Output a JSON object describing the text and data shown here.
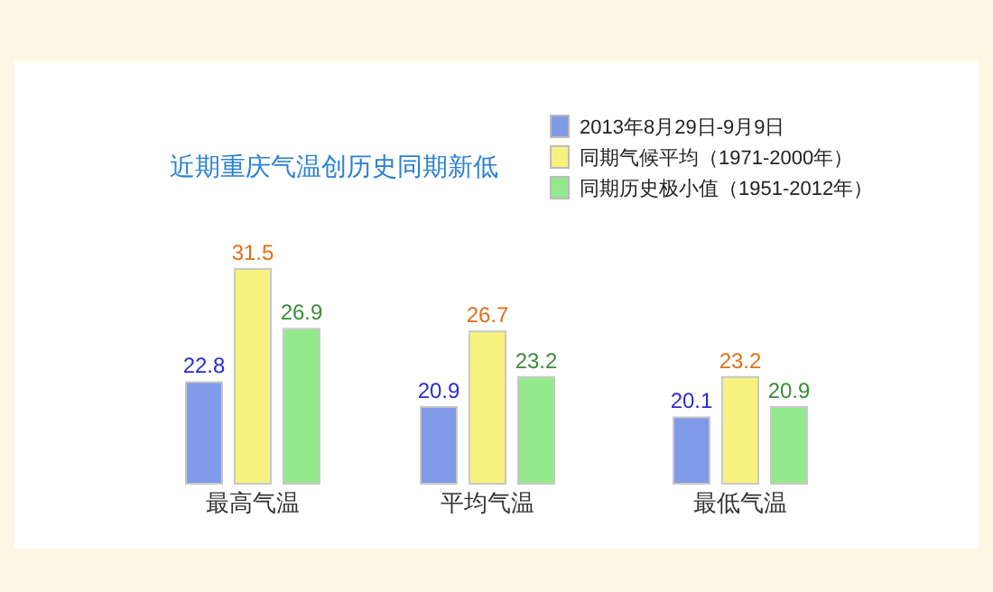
{
  "chart_data": {
    "type": "bar",
    "title": "近期重庆气温创历史同期新低",
    "categories": [
      "最高气温",
      "平均气温",
      "最低气温"
    ],
    "series": [
      {
        "name": "2013年8月29日-9月9日",
        "color": "#7f9ae6",
        "values": [
          22.8,
          20.9,
          20.1
        ],
        "value_labels": [
          "22.8",
          "20.9",
          "20.1"
        ]
      },
      {
        "name": "同期气候平均（1971-2000年）",
        "color": "#f7f27e",
        "values": [
          31.5,
          26.7,
          23.2
        ],
        "value_labels": [
          "31.5",
          "26.7",
          "23.2"
        ]
      },
      {
        "name": "同期历史极小值（1951-2012年）",
        "color": "#93ea8c",
        "values": [
          26.9,
          23.2,
          20.9
        ],
        "value_labels": [
          "26.9",
          "23.2",
          "20.9"
        ]
      }
    ],
    "ylim": [
      15,
      31.5
    ],
    "legend": "top right",
    "grid": false
  }
}
